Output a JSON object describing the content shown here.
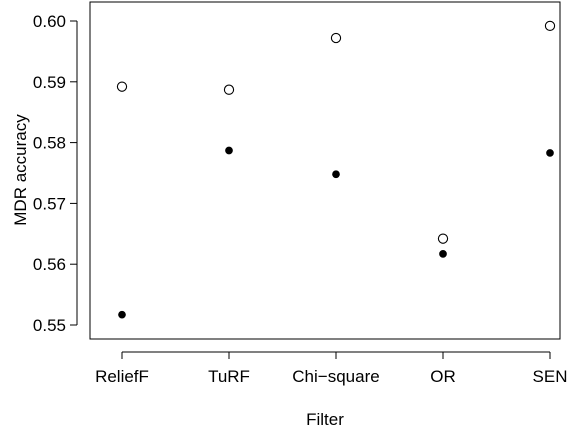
{
  "chart_data": {
    "type": "scatter",
    "title": "",
    "xlabel": "Filter",
    "ylabel": "MDR accuracy",
    "categories": [
      "ReliefF",
      "TuRF",
      "Chi−square",
      "OR",
      "SEN"
    ],
    "ylim": [
      0.548,
      0.6015
    ],
    "yticks": [
      "0.55",
      "0.56",
      "0.57",
      "0.58",
      "0.59",
      "0.60"
    ],
    "ytick_values": [
      0.55,
      0.56,
      0.57,
      0.58,
      0.59,
      0.6
    ],
    "grid": false,
    "series": [
      {
        "marker": "open-circle",
        "values": [
          0.5892,
          0.5887,
          0.5972,
          0.5642,
          0.5992
        ]
      },
      {
        "marker": "filled-circle",
        "values": [
          0.5517,
          0.5787,
          0.5748,
          0.5617,
          0.5783
        ]
      }
    ]
  }
}
